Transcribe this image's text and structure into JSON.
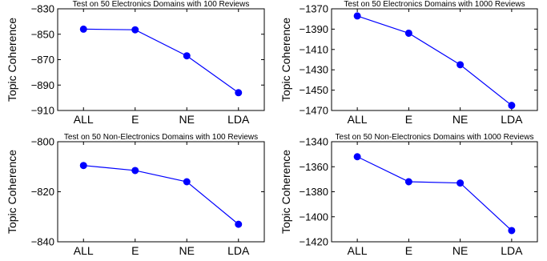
{
  "colors": {
    "series": "#0000ff",
    "axis": "#000000",
    "background": "#ffffff"
  },
  "chart_data": [
    {
      "type": "line",
      "title": "Test on 50 Electronics Domains with 100 Reviews",
      "xlabel": "",
      "ylabel": "Topic Coherence",
      "categories": [
        "ALL",
        "E",
        "NE",
        "LDA"
      ],
      "ylim": [
        -910,
        -830
      ],
      "yticks": [
        -830,
        -850,
        -870,
        -890,
        -910
      ],
      "grid": false,
      "series": [
        {
          "values": [
            -846,
            -846.5,
            -867,
            -896
          ]
        }
      ]
    },
    {
      "type": "line",
      "title": "Test on 50 Electronics Domains with 1000 Reviews",
      "xlabel": "",
      "ylabel": "Topic Coherence",
      "categories": [
        "ALL",
        "E",
        "NE",
        "LDA"
      ],
      "ylim": [
        -1470,
        -1370
      ],
      "yticks": [
        -1370,
        -1390,
        -1410,
        -1430,
        -1450,
        -1470
      ],
      "grid": false,
      "series": [
        {
          "values": [
            -1377,
            -1394,
            -1425,
            -1465
          ]
        }
      ]
    },
    {
      "type": "line",
      "title": "Test on 50 Non-Electronics Domains with 100 Reviews",
      "xlabel": "",
      "ylabel": "Topic Coherence",
      "categories": [
        "ALL",
        "E",
        "NE",
        "LDA"
      ],
      "ylim": [
        -840,
        -800
      ],
      "yticks": [
        -800,
        -820,
        -840
      ],
      "grid": false,
      "series": [
        {
          "values": [
            -809.5,
            -811.5,
            -816,
            -833
          ]
        }
      ]
    },
    {
      "type": "line",
      "title": "Test on 50 Non-Electronics Domains with 1000 Reviews",
      "xlabel": "",
      "ylabel": "Topic Coherence",
      "categories": [
        "ALL",
        "E",
        "NE",
        "LDA"
      ],
      "ylim": [
        -1420,
        -1340
      ],
      "yticks": [
        -1340,
        -1360,
        -1380,
        -1400,
        -1420
      ],
      "grid": false,
      "series": [
        {
          "values": [
            -1352,
            -1372,
            -1373,
            -1411
          ]
        }
      ]
    }
  ]
}
